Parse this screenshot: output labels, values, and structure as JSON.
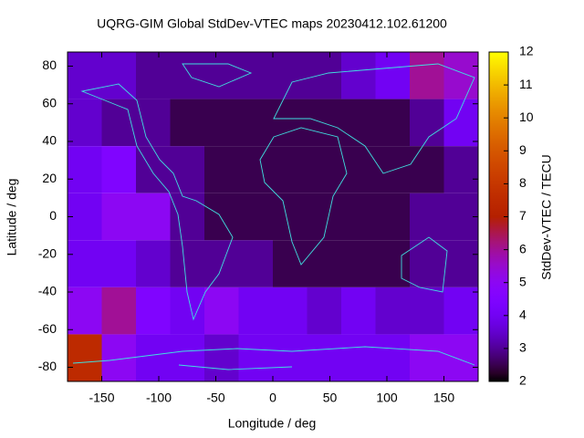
{
  "chart_data": {
    "type": "heatmap",
    "title": "UQRG-GIM Global StdDev-VTEC maps 20230412.102.61200",
    "x_label": "Longitude / deg",
    "y_label": "Latitude / deg",
    "colorbar_label": "StdDev-VTEC / TECU",
    "colormap": "gnuplot",
    "x": [
      -165,
      -135,
      -105,
      -75,
      -45,
      -15,
      15,
      45,
      75,
      105,
      135,
      165
    ],
    "y": [
      75,
      50,
      25,
      0,
      -25,
      -50,
      -75
    ],
    "z": [
      [
        3.5,
        3.5,
        3,
        3,
        3,
        3,
        3,
        3,
        3.5,
        4,
        6,
        5.5
      ],
      [
        3.5,
        3,
        3,
        2.5,
        2.5,
        2.5,
        2.5,
        2.5,
        2.5,
        2.5,
        3,
        4
      ],
      [
        4,
        4.5,
        3,
        3,
        2.5,
        2.5,
        2.5,
        2.5,
        2.5,
        2.5,
        2.5,
        3
      ],
      [
        4,
        5,
        5,
        3,
        2.5,
        2.5,
        2.5,
        2.5,
        2.5,
        2.5,
        3,
        3
      ],
      [
        4,
        4,
        3.5,
        3,
        3,
        3,
        2.5,
        2.5,
        2.5,
        2.5,
        3,
        3
      ],
      [
        5,
        6,
        4.5,
        4,
        5,
        4,
        4,
        3.5,
        4,
        3.5,
        3.5,
        4
      ],
      [
        7.5,
        5,
        4,
        4,
        3.5,
        4,
        4,
        4,
        4,
        4,
        5,
        5
      ]
    ],
    "xlim": [
      -180,
      180
    ],
    "ylim": [
      -87.5,
      87.5
    ],
    "xticks": [
      -150,
      -100,
      -50,
      0,
      50,
      100,
      150
    ],
    "yticks": [
      -80,
      -60,
      -40,
      -20,
      0,
      20,
      40,
      60,
      80
    ],
    "clim": [
      2,
      12
    ],
    "cticks": [
      2,
      3,
      4,
      5,
      6,
      7,
      8,
      9,
      10,
      11,
      12
    ]
  }
}
